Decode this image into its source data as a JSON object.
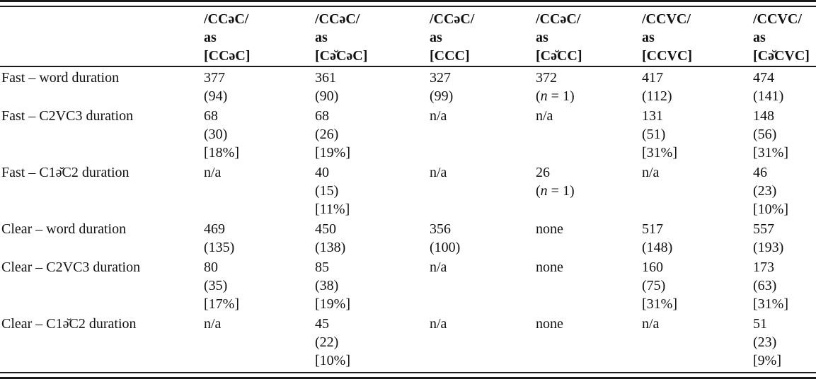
{
  "page": {
    "background_color": "#ffffff",
    "text_color": "#121212",
    "rule_color": "#1a1a1a"
  },
  "table": {
    "header": {
      "row_label_column": "",
      "columns": [
        {
          "lines": [
            "/CCəC/",
            "as",
            "[CCəC]"
          ]
        },
        {
          "lines": [
            "/CCəC/",
            "as",
            "[Cə̆CəC]"
          ]
        },
        {
          "lines": [
            "/CCəC/",
            "as",
            "[CCC]"
          ]
        },
        {
          "lines": [
            "/CCəC/",
            "as",
            "[Cə̆CC]"
          ]
        },
        {
          "lines": [
            "/CCVC/",
            "as",
            "[CCVC]"
          ]
        },
        {
          "lines": [
            "/CCVC/",
            "as",
            "[Cə̆CVC]"
          ]
        }
      ]
    },
    "rows": [
      {
        "label": "Fast – word duration",
        "cells": [
          [
            "377",
            "(94)"
          ],
          [
            "361",
            "(90)"
          ],
          [
            "327",
            "(99)"
          ],
          [
            "372",
            "(n = 1)"
          ],
          [
            "417",
            "(112)"
          ],
          [
            "474",
            "(141)"
          ]
        ]
      },
      {
        "label": "Fast – C2VC3 duration",
        "cells": [
          [
            "68",
            "(30)",
            "[18%]"
          ],
          [
            "68",
            "(26)",
            "[19%]"
          ],
          [
            "n/a"
          ],
          [
            "n/a"
          ],
          [
            "131",
            "(51)",
            "[31%]"
          ],
          [
            "148",
            "(56)",
            "[31%]"
          ]
        ]
      },
      {
        "label": "Fast – C1ə̆C2 duration",
        "cells": [
          [
            "n/a"
          ],
          [
            "40",
            "(15)",
            "[11%]"
          ],
          [
            "n/a"
          ],
          [
            "26",
            "(n = 1)"
          ],
          [
            "n/a"
          ],
          [
            "46",
            "(23)",
            "[10%]"
          ]
        ]
      },
      {
        "label": "Clear – word duration",
        "cells": [
          [
            "469",
            "(135)"
          ],
          [
            "450",
            "(138)"
          ],
          [
            "356",
            "(100)"
          ],
          [
            "none"
          ],
          [
            "517",
            "(148)"
          ],
          [
            "557",
            "(193)"
          ]
        ]
      },
      {
        "label": "Clear – C2VC3 duration",
        "cells": [
          [
            "80",
            "(35)",
            "[17%]"
          ],
          [
            "85",
            "(38)",
            "[19%]"
          ],
          [
            "n/a"
          ],
          [
            "none"
          ],
          [
            "160",
            "(75)",
            "[31%]"
          ],
          [
            "173",
            "(63)",
            "[31%]"
          ]
        ]
      },
      {
        "label": "Clear – C1ə̆C2 duration",
        "cells": [
          [
            "n/a"
          ],
          [
            "45",
            "(22)",
            "[10%]"
          ],
          [
            "n/a"
          ],
          [
            "none"
          ],
          [
            "n/a"
          ],
          [
            "51",
            "(23)",
            "[9%]"
          ]
        ]
      }
    ],
    "italic_pattern": "(n = 1)"
  }
}
